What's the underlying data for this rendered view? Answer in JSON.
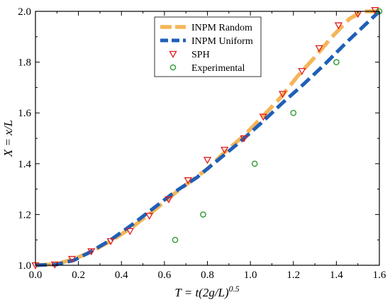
{
  "chart_data": {
    "type": "line",
    "title": "",
    "xlabel": {
      "prefix": "T = t(2g/L)",
      "superscript": "0.5"
    },
    "ylabel": "X = x/L",
    "xlim": [
      0.0,
      1.6
    ],
    "ylim": [
      1.0,
      2.0
    ],
    "x_ticks": [
      "0.0",
      "0.2",
      "0.4",
      "0.6",
      "0.8",
      "1.0",
      "1.2",
      "1.4",
      "1.6"
    ],
    "y_ticks": [
      "1.0",
      "1.2",
      "1.4",
      "1.6",
      "1.8",
      "2.0"
    ],
    "grid": false,
    "legend_position": "top-center",
    "series": [
      {
        "name": "INPM Random",
        "style": "dashed-line",
        "color": "#f5b559",
        "points": [
          [
            0.0,
            1.0
          ],
          [
            0.1,
            1.005
          ],
          [
            0.18,
            1.025
          ],
          [
            0.25,
            1.05
          ],
          [
            0.35,
            1.095
          ],
          [
            0.45,
            1.15
          ],
          [
            0.55,
            1.215
          ],
          [
            0.65,
            1.285
          ],
          [
            0.72,
            1.33
          ],
          [
            0.8,
            1.38
          ],
          [
            0.88,
            1.445
          ],
          [
            0.97,
            1.51
          ],
          [
            1.05,
            1.58
          ],
          [
            1.14,
            1.66
          ],
          [
            1.22,
            1.745
          ],
          [
            1.3,
            1.82
          ],
          [
            1.38,
            1.9
          ],
          [
            1.46,
            1.97
          ],
          [
            1.52,
            2.0
          ],
          [
            1.6,
            2.0
          ]
        ]
      },
      {
        "name": "INPM Uniform",
        "style": "dashed-line",
        "color": "#1f5fb8",
        "points": [
          [
            0.0,
            1.0
          ],
          [
            0.1,
            1.003
          ],
          [
            0.18,
            1.02
          ],
          [
            0.25,
            1.05
          ],
          [
            0.35,
            1.1
          ],
          [
            0.45,
            1.16
          ],
          [
            0.55,
            1.225
          ],
          [
            0.65,
            1.29
          ],
          [
            0.75,
            1.345
          ],
          [
            0.85,
            1.415
          ],
          [
            0.95,
            1.485
          ],
          [
            1.05,
            1.56
          ],
          [
            1.15,
            1.64
          ],
          [
            1.25,
            1.715
          ],
          [
            1.35,
            1.795
          ],
          [
            1.45,
            1.88
          ],
          [
            1.55,
            1.96
          ],
          [
            1.6,
            2.0
          ]
        ]
      },
      {
        "name": "SPH",
        "style": "triangle-down-marker",
        "color": "#e01e1e",
        "points": [
          [
            0.0,
            1.0
          ],
          [
            0.09,
            1.003
          ],
          [
            0.17,
            1.025
          ],
          [
            0.26,
            1.055
          ],
          [
            0.35,
            1.095
          ],
          [
            0.44,
            1.135
          ],
          [
            0.53,
            1.195
          ],
          [
            0.62,
            1.26
          ],
          [
            0.71,
            1.335
          ],
          [
            0.8,
            1.415
          ],
          [
            0.88,
            1.455
          ],
          [
            0.97,
            1.5
          ],
          [
            1.06,
            1.585
          ],
          [
            1.15,
            1.675
          ],
          [
            1.24,
            1.765
          ],
          [
            1.32,
            1.855
          ],
          [
            1.41,
            1.945
          ],
          [
            1.5,
            1.99
          ],
          [
            1.58,
            2.005
          ]
        ]
      },
      {
        "name": "Experimental",
        "style": "circle-marker",
        "color": "#2e9a2e",
        "points": [
          [
            0.65,
            1.1
          ],
          [
            0.78,
            1.2
          ],
          [
            1.02,
            1.4
          ],
          [
            1.2,
            1.6
          ],
          [
            1.4,
            1.8
          ],
          [
            1.6,
            2.0
          ]
        ]
      }
    ]
  }
}
